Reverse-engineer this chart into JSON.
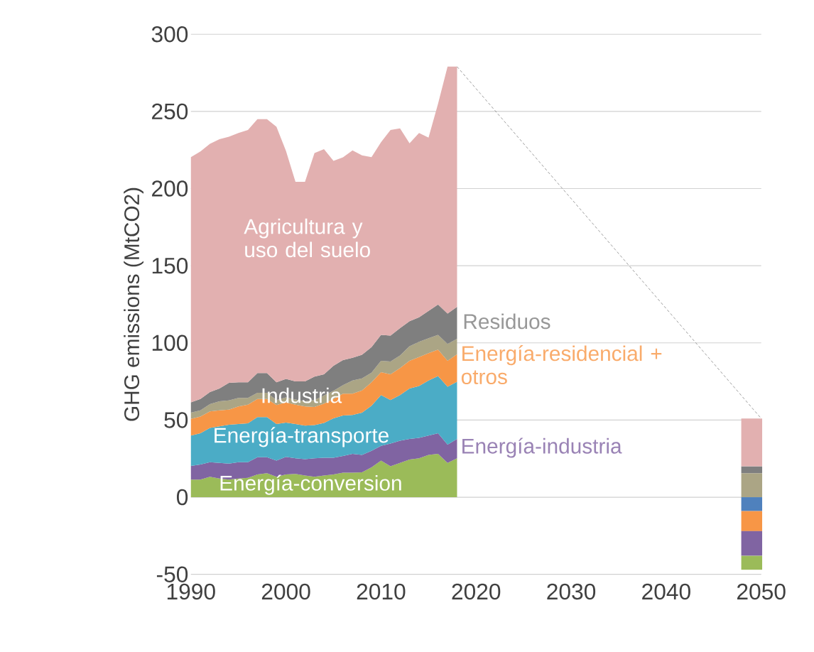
{
  "chart_data": {
    "type": "area",
    "stacked": true,
    "ylabel": "GHG emissions (MtCO2)",
    "x": [
      1990,
      1991,
      1992,
      1993,
      1994,
      1995,
      1996,
      1997,
      1998,
      1999,
      2000,
      2001,
      2002,
      2003,
      2004,
      2005,
      2006,
      2007,
      2008,
      2009,
      2010,
      2011,
      2012,
      2013,
      2014,
      2015,
      2016,
      2017,
      2018
    ],
    "xlim": [
      1990,
      2050
    ],
    "xticks": [
      1990,
      2000,
      2010,
      2020,
      2030,
      2040,
      2050
    ],
    "ylim": [
      -50,
      300
    ],
    "yticks": [
      -50,
      0,
      50,
      100,
      150,
      200,
      250,
      300
    ],
    "grid": "y",
    "series": [
      {
        "name": "Energía-conversion",
        "color": "#9bbb59",
        "values": [
          11.4,
          11.4,
          13.2,
          12.1,
          11.4,
          12.1,
          12.6,
          14.8,
          15.6,
          13.3,
          14.8,
          15.1,
          14.1,
          13.3,
          14.1,
          14.8,
          15.9,
          15.9,
          16.1,
          19.3,
          23.7,
          20,
          22.2,
          24.4,
          25.2,
          27.4,
          28.1,
          22.2,
          25.2
        ]
      },
      {
        "name": "Energía-industria",
        "color": "#8064a2",
        "values": [
          8.9,
          9.8,
          9.5,
          10.1,
          10.4,
          10.6,
          10.1,
          11.1,
          10.3,
          10.4,
          11.4,
          10.1,
          10.6,
          11.9,
          11.5,
          10.8,
          10.8,
          12.2,
          11.3,
          10.8,
          9.6,
          14.8,
          14.4,
          13.4,
          13.3,
          12.6,
          13.4,
          11.9,
          12.6
        ]
      },
      {
        "name": "Energía-transporte",
        "color": "#4bacc6",
        "values": [
          19.7,
          20.3,
          22.2,
          23.7,
          25.2,
          24.7,
          25.2,
          26,
          26,
          23.7,
          22.2,
          22.2,
          21.7,
          21.5,
          22.5,
          25.5,
          26.2,
          25.2,
          27.4,
          29.2,
          32.9,
          28.2,
          29.6,
          32.6,
          33.6,
          35.6,
          37,
          37.5,
          37
        ]
      },
      {
        "name": "Energía-residencial + otros",
        "color": "#f79646",
        "values": [
          10.8,
          10.8,
          10.7,
          10.4,
          9.7,
          11.4,
          12.1,
          11.8,
          11.8,
          12.3,
          13.1,
          12.6,
          12.4,
          11.8,
          12.6,
          12.6,
          14.2,
          13.8,
          14.4,
          15.2,
          14.8,
          16.6,
          17.5,
          18,
          18.7,
          17.7,
          17.1,
          16.8,
          17.8
        ]
      },
      {
        "name": "Industria",
        "color": "#aba585",
        "values": [
          4,
          4,
          4.7,
          5.9,
          6,
          5.6,
          4.4,
          4,
          4,
          3.3,
          3.2,
          3.3,
          3.4,
          4.5,
          5.2,
          5.2,
          5.5,
          8.5,
          7.8,
          6.2,
          7.4,
          8.3,
          8.2,
          9.4,
          9.9,
          9.7,
          9.6,
          10.9,
          10.1
        ]
      },
      {
        "name": "Residuos",
        "color": "#7f7f7f",
        "values": [
          6.7,
          7.4,
          7.8,
          8.2,
          11.4,
          10.1,
          10.1,
          12.7,
          12.7,
          11.5,
          11.9,
          11.8,
          12.9,
          15.1,
          13.7,
          16.3,
          16.3,
          14.8,
          15.3,
          16.6,
          16.8,
          16.8,
          17.7,
          16.3,
          15.9,
          17.7,
          19.7,
          19.7,
          20.7
        ]
      },
      {
        "name": "Agricultura y uso del suelo",
        "color": "#e2b0b0",
        "values": [
          158.9,
          160.3,
          160.9,
          161.6,
          159.5,
          161.5,
          163.5,
          164.6,
          164.6,
          165.5,
          147.8,
          129.3,
          129.3,
          144.9,
          145.9,
          132.8,
          131.4,
          134.3,
          129.2,
          123.1,
          124.8,
          133.3,
          129.4,
          115.2,
          119.4,
          112.3,
          130.1,
          160,
          155.6
        ]
      },
      {
        "type": "bar",
        "x": [
          2049
        ],
        "color": "#aba585",
        "values": [
          15.6
        ]
      },
      {
        "type": "bar",
        "x": [
          2049
        ],
        "color": "#7f7f7f",
        "values": [
          4.4
        ]
      },
      {
        "type": "bar",
        "x": [
          2049
        ],
        "color": "#e2b0b0",
        "values": [
          31
        ]
      },
      {
        "type": "bar",
        "x": [
          2049
        ],
        "color": "#4f81bd",
        "values": [
          -9
        ]
      },
      {
        "type": "bar",
        "x": [
          2049
        ],
        "color": "#f79646",
        "values": [
          -13
        ]
      },
      {
        "type": "bar",
        "x": [
          2049
        ],
        "color": "#8064a2",
        "values": [
          -16
        ]
      },
      {
        "type": "bar",
        "x": [
          2049
        ],
        "color": "#9bbb59",
        "values": [
          -9
        ]
      },
      {
        "type": "line",
        "x": [
          2018,
          2050
        ],
        "color": "#808080",
        "line_style": "dashed",
        "values": [
          279,
          51
        ]
      }
    ]
  }
}
